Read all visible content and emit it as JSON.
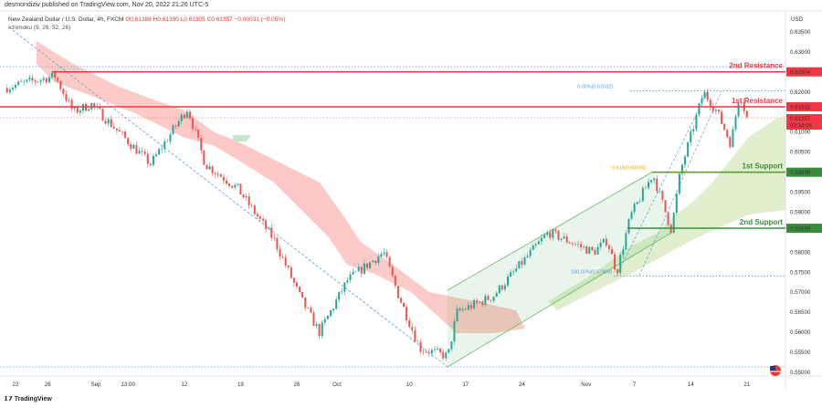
{
  "header": {
    "published": "desmondiziv published on TradingView.com, Nov 20, 2022 21:26 UTC-5"
  },
  "legend": {
    "symbol": "New Zealand Dollar / U.S. Dollar, 4h, FXCM",
    "o": "O0.61388",
    "h": "H0.61390",
    "l": "L0.61305",
    "c": "C0.61357",
    "chg": "−0.00031 (−0.05%)",
    "indicator": "Ichimoku (9, 26, 52, 26)"
  },
  "brand": "TradingView",
  "colors": {
    "up": "#26a69a",
    "down": "#ef5350",
    "resistance": "#f23645",
    "support": "#388e3c",
    "fib": "#2962ff"
  },
  "chart_data": {
    "type": "candlestick",
    "currency": "USD",
    "ylim": [
      0.548,
      0.638
    ],
    "y_ticks": [
      "0.63500",
      "0.63000",
      "0.62000",
      "0.61000",
      "0.60500",
      "0.59500",
      "0.59000",
      "0.58000",
      "0.57500",
      "0.57000",
      "0.56500",
      "0.56000",
      "0.55500"
    ],
    "x_ticks": [
      {
        "day": 0,
        "label": "22"
      },
      {
        "day": 4,
        "label": "26"
      },
      {
        "day": 10,
        "label": "Sep"
      },
      {
        "day": 14,
        "label": "13:00"
      },
      {
        "day": 21,
        "label": "12"
      },
      {
        "day": 28,
        "label": "19"
      },
      {
        "day": 35,
        "label": "26"
      },
      {
        "day": 40,
        "label": "Oct"
      },
      {
        "day": 49,
        "label": "10"
      },
      {
        "day": 56,
        "label": "17"
      },
      {
        "day": 63,
        "label": "24"
      },
      {
        "day": 71,
        "label": "Nov"
      },
      {
        "day": 77,
        "label": "7"
      },
      {
        "day": 84,
        "label": "14"
      },
      {
        "day": 91,
        "label": "21"
      }
    ],
    "price_path": [
      [
        -1.4,
        0.621
      ],
      [
        4.9,
        0.624
      ],
      [
        7.2,
        0.615
      ],
      [
        9.4,
        0.617
      ],
      [
        16.8,
        0.602
      ],
      [
        21.4,
        0.616
      ],
      [
        23.6,
        0.602
      ],
      [
        27.6,
        0.596
      ],
      [
        32.2,
        0.583
      ],
      [
        35.6,
        0.568
      ],
      [
        37.8,
        0.56
      ],
      [
        41.3,
        0.573
      ],
      [
        45.8,
        0.58
      ],
      [
        47.5,
        0.57
      ],
      [
        50.3,
        0.556
      ],
      [
        53.8,
        0.554
      ],
      [
        54.9,
        0.565
      ],
      [
        59.4,
        0.569
      ],
      [
        66.3,
        0.585
      ],
      [
        71.9,
        0.58
      ],
      [
        73.6,
        0.583
      ],
      [
        74.8,
        0.575
      ],
      [
        76.5,
        0.589
      ],
      [
        79.3,
        0.5995
      ],
      [
        81.6,
        0.5855
      ],
      [
        82.7,
        0.6
      ],
      [
        85.6,
        0.62
      ],
      [
        87.3,
        0.615
      ],
      [
        89,
        0.607
      ],
      [
        90.1,
        0.62
      ],
      [
        91,
        0.61357
      ]
    ],
    "levels": [
      {
        "name": "2nd Resistance",
        "price": "0.62504",
        "value": 0.62504,
        "kind": "resistance"
      },
      {
        "name": "1st Resistance",
        "price": "0.61632",
        "value": 0.61632,
        "kind": "resistance"
      },
      {
        "name": "1st Support",
        "price": "0.59998",
        "value": 0.59998,
        "kind": "support"
      },
      {
        "name": "2nd Support",
        "price": "0.58599",
        "value": 0.58599,
        "kind": "support"
      }
    ],
    "fib": [
      {
        "label": "0.00%(0.62032)",
        "value": 0.62032
      },
      {
        "label": "0.618(0.60005)",
        "value": 0.60005
      },
      {
        "label": "100.00%(0.57408)",
        "value": 0.57408
      }
    ],
    "last_price": {
      "price": "0.61357",
      "countdown": "03:34:04",
      "value": 0.61357
    },
    "bottom_badge": "0.55000"
  }
}
